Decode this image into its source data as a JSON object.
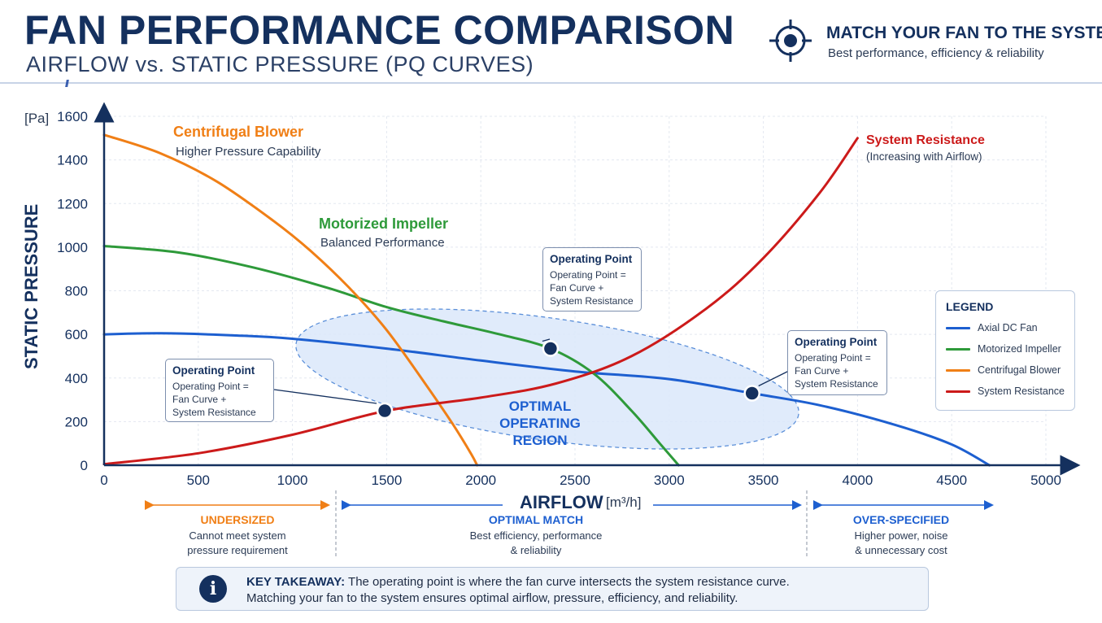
{
  "header": {
    "title": "FAN PERFORMANCE COMPARISON",
    "subtitle": "AIRFLOW vs. STATIC PRESSURE (PQ CURVES)",
    "match_title": "MATCH YOUR FAN TO THE SYSTEM",
    "match_subtitle": "Best performance, efficiency & reliability"
  },
  "chart_data": {
    "type": "line",
    "title": "FAN PERFORMANCE COMPARISON",
    "subtitle": "AIRFLOW vs. STATIC PRESSURE (PQ CURVES)",
    "xlabel": "AIRFLOW",
    "xunit": "[m³/h]",
    "ylabel": "STATIC PRESSURE",
    "yunit": "[Pa]",
    "xlim": [
      0,
      5000
    ],
    "ylim": [
      0,
      1600
    ],
    "xticks": [
      0,
      500,
      1000,
      1500,
      2000,
      2500,
      3000,
      3500,
      4000,
      4500,
      5000
    ],
    "yticks": [
      0,
      200,
      400,
      600,
      800,
      1000,
      1200,
      1400,
      1600
    ],
    "grid": true,
    "legend_position": "right",
    "series": [
      {
        "name": "Axial DC Fan",
        "color": "#1d5fd0",
        "x": [
          0,
          300,
          700,
          1000,
          1500,
          2000,
          2500,
          3000,
          3440,
          3800,
          4200,
          4500,
          4700
        ],
        "y": [
          600,
          605,
          595,
          580,
          535,
          480,
          430,
          395,
          330,
          275,
          185,
          95,
          0
        ]
      },
      {
        "name": "Motorized Impeller",
        "color": "#2e9a3a",
        "x": [
          0,
          400,
          800,
          1200,
          1500,
          1800,
          2100,
          2370,
          2600,
          2800,
          2950,
          3050
        ],
        "y": [
          1005,
          975,
          905,
          810,
          725,
          660,
          600,
          535,
          420,
          250,
          100,
          0
        ]
      },
      {
        "name": "Centrifugal Blower",
        "color": "#f07f16",
        "x": [
          0,
          300,
          600,
          900,
          1100,
          1300,
          1500,
          1700,
          1850,
          1950,
          1980
        ],
        "y": [
          1515,
          1430,
          1300,
          1120,
          980,
          815,
          620,
          380,
          190,
          50,
          0
        ]
      },
      {
        "name": "System Resistance",
        "color": "#cc1a1a",
        "x": [
          0,
          500,
          1000,
          1500,
          2000,
          2400,
          2800,
          3200,
          3500,
          3800,
          4000
        ],
        "y": [
          5,
          55,
          140,
          250,
          310,
          375,
          500,
          720,
          950,
          1250,
          1500
        ]
      }
    ],
    "operating_points": [
      {
        "x": 1490,
        "y": 250
      },
      {
        "x": 2370,
        "y": 535
      },
      {
        "x": 3440,
        "y": 330
      }
    ],
    "annotations": [
      {
        "title": "Centrifugal Blower",
        "text": "Higher Pressure Capability"
      },
      {
        "title": "Motorized Impeller",
        "text": "Balanced Performance"
      },
      {
        "title": "System Resistance",
        "text": "(Increasing with Airflow)"
      },
      {
        "text": "OPTIMAL OPERATING REGION"
      }
    ]
  },
  "legend": {
    "title": "LEGEND",
    "items": [
      {
        "label": "Axial DC Fan",
        "color": "#1d5fd0"
      },
      {
        "label": "Motorized Impeller",
        "color": "#2e9a3a"
      },
      {
        "label": "Centrifugal Blower",
        "color": "#f07f16"
      },
      {
        "label": "System Resistance",
        "color": "#cc1a1a"
      }
    ]
  },
  "op_boxes": [
    {
      "title": "Operating Point",
      "text": "Operating Point =\nFan Curve +\nSystem Resistance"
    },
    {
      "title": "Operating Point",
      "text": "Operating Point =\nFan Curve +\nSystem Resistance"
    },
    {
      "title": "Operating Point",
      "text": "Operating Point =\nFan Curve +\nSystem Resistance"
    }
  ],
  "bands": {
    "undersized": {
      "title": "UNDERSIZED",
      "text": "Cannot meet system\npressure requirement",
      "color": "#f07f16"
    },
    "optimal": {
      "title": "OPTIMAL MATCH",
      "text": "Best efficiency, performance\n& reliability",
      "color": "#1d5fd0"
    },
    "over": {
      "title": "OVER-SPECIFIED",
      "text": "Higher power, noise\n& unnecessary cost",
      "color": "#1d5fd0"
    }
  },
  "takeaway": {
    "label": "KEY TAKEAWAY:",
    "line1": "The operating point is where the fan curve intersects the system resistance curve.",
    "line2": "Matching your fan to the system ensures optimal airflow, pressure, efficiency, and reliability."
  }
}
